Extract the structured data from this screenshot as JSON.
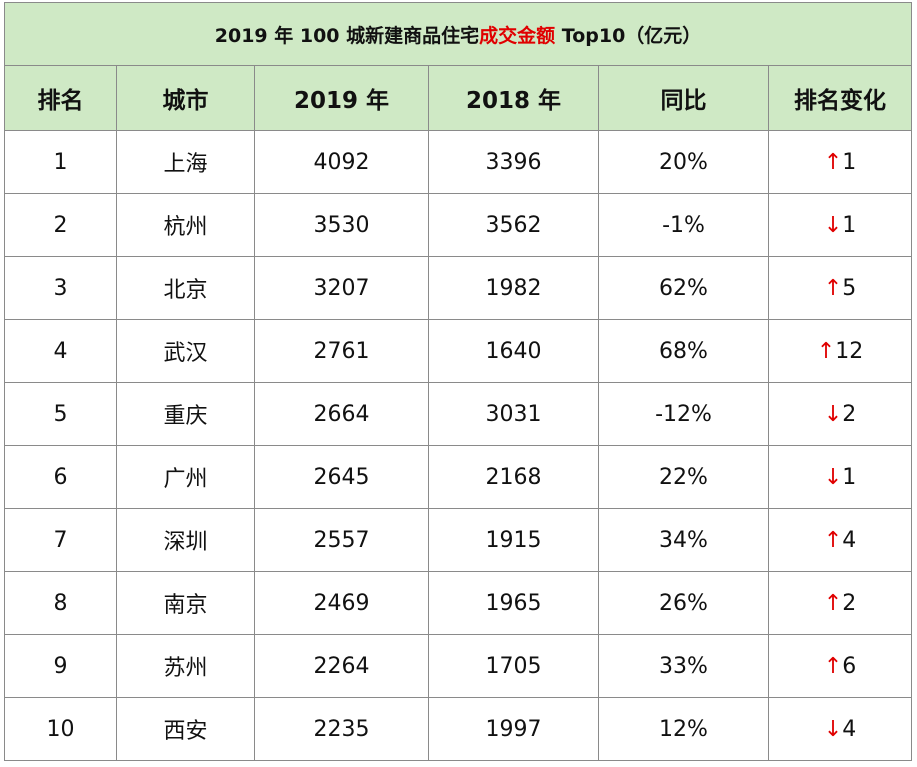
{
  "title": {
    "prefix": "2019 年 100 城新建商品住宅",
    "highlight": "成交金额",
    "suffix": " Top10（亿元）"
  },
  "columns": [
    "排名",
    "城市",
    "2019 年",
    "2018 年",
    "同比",
    "排名变化"
  ],
  "rows": [
    {
      "rank": "1",
      "city": "上海",
      "y2019": "4092",
      "y2018": "3396",
      "yoy": "20%",
      "dir": "up",
      "arrow": "↑",
      "change": "1"
    },
    {
      "rank": "2",
      "city": "杭州",
      "y2019": "3530",
      "y2018": "3562",
      "yoy": "-1%",
      "dir": "down",
      "arrow": "↓",
      "change": "1"
    },
    {
      "rank": "3",
      "city": "北京",
      "y2019": "3207",
      "y2018": "1982",
      "yoy": "62%",
      "dir": "up",
      "arrow": "↑",
      "change": "5"
    },
    {
      "rank": "4",
      "city": "武汉",
      "y2019": "2761",
      "y2018": "1640",
      "yoy": "68%",
      "dir": "up",
      "arrow": "↑",
      "change": "12"
    },
    {
      "rank": "5",
      "city": "重庆",
      "y2019": "2664",
      "y2018": "3031",
      "yoy": "-12%",
      "dir": "down",
      "arrow": "↓",
      "change": "2"
    },
    {
      "rank": "6",
      "city": "广州",
      "y2019": "2645",
      "y2018": "2168",
      "yoy": "22%",
      "dir": "down",
      "arrow": "↓",
      "change": "1"
    },
    {
      "rank": "7",
      "city": "深圳",
      "y2019": "2557",
      "y2018": "1915",
      "yoy": "34%",
      "dir": "up",
      "arrow": "↑",
      "change": "4"
    },
    {
      "rank": "8",
      "city": "南京",
      "y2019": "2469",
      "y2018": "1965",
      "yoy": "26%",
      "dir": "up",
      "arrow": "↑",
      "change": "2"
    },
    {
      "rank": "9",
      "city": "苏州",
      "y2019": "2264",
      "y2018": "1705",
      "yoy": "33%",
      "dir": "up",
      "arrow": "↑",
      "change": "6"
    },
    {
      "rank": "10",
      "city": "西安",
      "y2019": "2235",
      "y2018": "1997",
      "yoy": "12%",
      "dir": "down",
      "arrow": "↓",
      "change": "4"
    }
  ],
  "colors": {
    "header_bg": "#cfe9c5",
    "highlight": "#e00000",
    "arrow": "#e00000",
    "border": "#8a8a8a"
  }
}
